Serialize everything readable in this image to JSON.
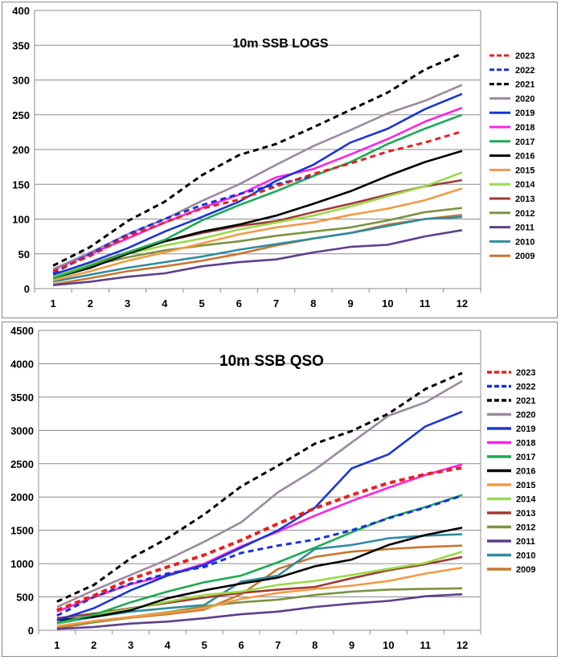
{
  "chart_data": [
    {
      "type": "line",
      "title": "10m SSB LOGS",
      "xlabel": "",
      "ylabel": "",
      "categories": [
        1,
        2,
        3,
        4,
        5,
        6,
        7,
        8,
        9,
        10,
        11,
        12
      ],
      "ylim": [
        0,
        400
      ],
      "yticks": [
        0,
        50,
        100,
        150,
        200,
        250,
        300,
        350,
        400
      ],
      "grid": true,
      "legend": "right",
      "series": [
        {
          "name": "2023",
          "color": "#e8201e",
          "dashed": true,
          "values": [
            25,
            47,
            75,
            95,
            115,
            128,
            147,
            165,
            180,
            197,
            210,
            226
          ]
        },
        {
          "name": "2022",
          "color": "#1c2fe0",
          "dashed": true,
          "values": [
            22,
            50,
            78,
            100,
            120,
            136,
            150,
            162,
            null,
            null,
            null,
            null
          ]
        },
        {
          "name": "2021",
          "color": "#000000",
          "dashed": true,
          "values": [
            33,
            60,
            97,
            125,
            163,
            192,
            208,
            232,
            257,
            282,
            315,
            338
          ]
        },
        {
          "name": "2020",
          "color": "#9b8aa0",
          "dashed": false,
          "values": [
            28,
            52,
            78,
            100,
            126,
            150,
            178,
            205,
            228,
            252,
            270,
            293
          ]
        },
        {
          "name": "2019",
          "color": "#1a35d9",
          "dashed": false,
          "values": [
            20,
            38,
            58,
            82,
            103,
            125,
            155,
            178,
            210,
            230,
            258,
            280
          ]
        },
        {
          "name": "2018",
          "color": "#ff22e6",
          "dashed": false,
          "values": [
            27,
            50,
            72,
            95,
            116,
            135,
            160,
            172,
            193,
            215,
            240,
            260
          ]
        },
        {
          "name": "2017",
          "color": "#1aaa55",
          "dashed": false,
          "values": [
            15,
            33,
            52,
            70,
            98,
            120,
            140,
            162,
            182,
            208,
            230,
            250
          ]
        },
        {
          "name": "2016",
          "color": "#000000",
          "dashed": false,
          "values": [
            15,
            30,
            50,
            68,
            82,
            92,
            105,
            122,
            140,
            162,
            182,
            198
          ]
        },
        {
          "name": "2015",
          "color": "#f39a45",
          "dashed": false,
          "values": [
            12,
            25,
            40,
            52,
            65,
            78,
            88,
            95,
            106,
            115,
            127,
            144
          ]
        },
        {
          "name": "2014",
          "color": "#9ad94a",
          "dashed": false,
          "values": [
            18,
            35,
            50,
            62,
            72,
            85,
            95,
            105,
            118,
            133,
            147,
            167
          ]
        },
        {
          "name": "2013",
          "color": "#9e3b34",
          "dashed": false,
          "values": [
            20,
            35,
            52,
            68,
            80,
            90,
            97,
            110,
            122,
            135,
            147,
            156
          ]
        },
        {
          "name": "2012",
          "color": "#7a9440",
          "dashed": false,
          "values": [
            22,
            33,
            45,
            55,
            62,
            68,
            76,
            82,
            88,
            98,
            110,
            116
          ]
        },
        {
          "name": "2011",
          "color": "#5e3f8c",
          "dashed": false,
          "values": [
            5,
            10,
            17,
            22,
            32,
            38,
            42,
            52,
            60,
            63,
            75,
            84
          ]
        },
        {
          "name": "2010",
          "color": "#2f8ba0",
          "dashed": false,
          "values": [
            10,
            20,
            30,
            38,
            46,
            56,
            64,
            72,
            80,
            90,
            100,
            103
          ]
        },
        {
          "name": "2009",
          "color": "#c8762f",
          "dashed": false,
          "values": [
            6,
            15,
            25,
            32,
            40,
            50,
            62,
            72,
            80,
            92,
            100,
            106
          ]
        }
      ]
    },
    {
      "type": "line",
      "title": "10m SSB QSO",
      "xlabel": "",
      "ylabel": "",
      "categories": [
        1,
        2,
        3,
        4,
        5,
        6,
        7,
        8,
        9,
        10,
        11,
        12
      ],
      "ylim": [
        0,
        4500
      ],
      "yticks": [
        0,
        500,
        1000,
        1500,
        2000,
        2500,
        3000,
        3500,
        4000,
        4500
      ],
      "grid": true,
      "legend": "right",
      "series": [
        {
          "name": "2023",
          "color": "#e8201e",
          "dashed": true,
          "values": [
            300,
            520,
            770,
            950,
            1130,
            1350,
            1600,
            1830,
            2030,
            2210,
            2340,
            2440
          ]
        },
        {
          "name": "2022",
          "color": "#1c2fe0",
          "dashed": true,
          "values": [
            220,
            500,
            700,
            850,
            950,
            1160,
            1270,
            1360,
            1500,
            1680,
            1840,
            2020
          ]
        },
        {
          "name": "2021",
          "color": "#000000",
          "dashed": true,
          "values": [
            430,
            680,
            1080,
            1380,
            1740,
            2160,
            2470,
            2800,
            2990,
            3250,
            3620,
            3860
          ]
        },
        {
          "name": "2020",
          "color": "#9b8aa0",
          "dashed": false,
          "values": [
            350,
            600,
            830,
            1060,
            1330,
            1620,
            2070,
            2410,
            2820,
            3220,
            3420,
            3740
          ]
        },
        {
          "name": "2019",
          "color": "#1a35d9",
          "dashed": false,
          "values": [
            150,
            330,
            600,
            820,
            980,
            1240,
            1500,
            1840,
            2430,
            2640,
            3060,
            3280
          ]
        },
        {
          "name": "2018",
          "color": "#ff22e6",
          "dashed": false,
          "values": [
            280,
            500,
            690,
            830,
            1000,
            1260,
            1480,
            1720,
            1940,
            2140,
            2330,
            2490
          ]
        },
        {
          "name": "2017",
          "color": "#1aaa55",
          "dashed": false,
          "values": [
            110,
            230,
            420,
            580,
            720,
            820,
            1020,
            1240,
            1470,
            1690,
            1850,
            2030
          ]
        },
        {
          "name": "2016",
          "color": "#000000",
          "dashed": false,
          "values": [
            150,
            200,
            300,
            480,
            600,
            700,
            790,
            960,
            1060,
            1280,
            1430,
            1540
          ]
        },
        {
          "name": "2015",
          "color": "#f39a45",
          "dashed": false,
          "values": [
            60,
            140,
            200,
            260,
            330,
            470,
            560,
            620,
            670,
            740,
            850,
            940
          ]
        },
        {
          "name": "2014",
          "color": "#9ad94a",
          "dashed": false,
          "values": [
            100,
            230,
            320,
            430,
            530,
            580,
            680,
            740,
            830,
            920,
            1010,
            1180
          ]
        },
        {
          "name": "2013",
          "color": "#9e3b34",
          "dashed": false,
          "values": [
            180,
            250,
            330,
            410,
            490,
            560,
            610,
            650,
            780,
            900,
            990,
            1100
          ]
        },
        {
          "name": "2012",
          "color": "#7a9440",
          "dashed": false,
          "values": [
            60,
            120,
            200,
            270,
            360,
            420,
            460,
            530,
            580,
            610,
            620,
            630
          ]
        },
        {
          "name": "2011",
          "color": "#5e3f8c",
          "dashed": false,
          "values": [
            20,
            50,
            100,
            130,
            180,
            240,
            280,
            350,
            400,
            440,
            510,
            540
          ]
        },
        {
          "name": "2010",
          "color": "#2f8ba0",
          "dashed": false,
          "values": [
            100,
            200,
            280,
            330,
            380,
            730,
            820,
            1220,
            1280,
            1380,
            1420,
            1440
          ]
        },
        {
          "name": "2009",
          "color": "#c8762f",
          "dashed": false,
          "values": [
            30,
            120,
            190,
            240,
            310,
            540,
            920,
            1100,
            1180,
            1220,
            1250,
            1270
          ]
        }
      ]
    }
  ]
}
